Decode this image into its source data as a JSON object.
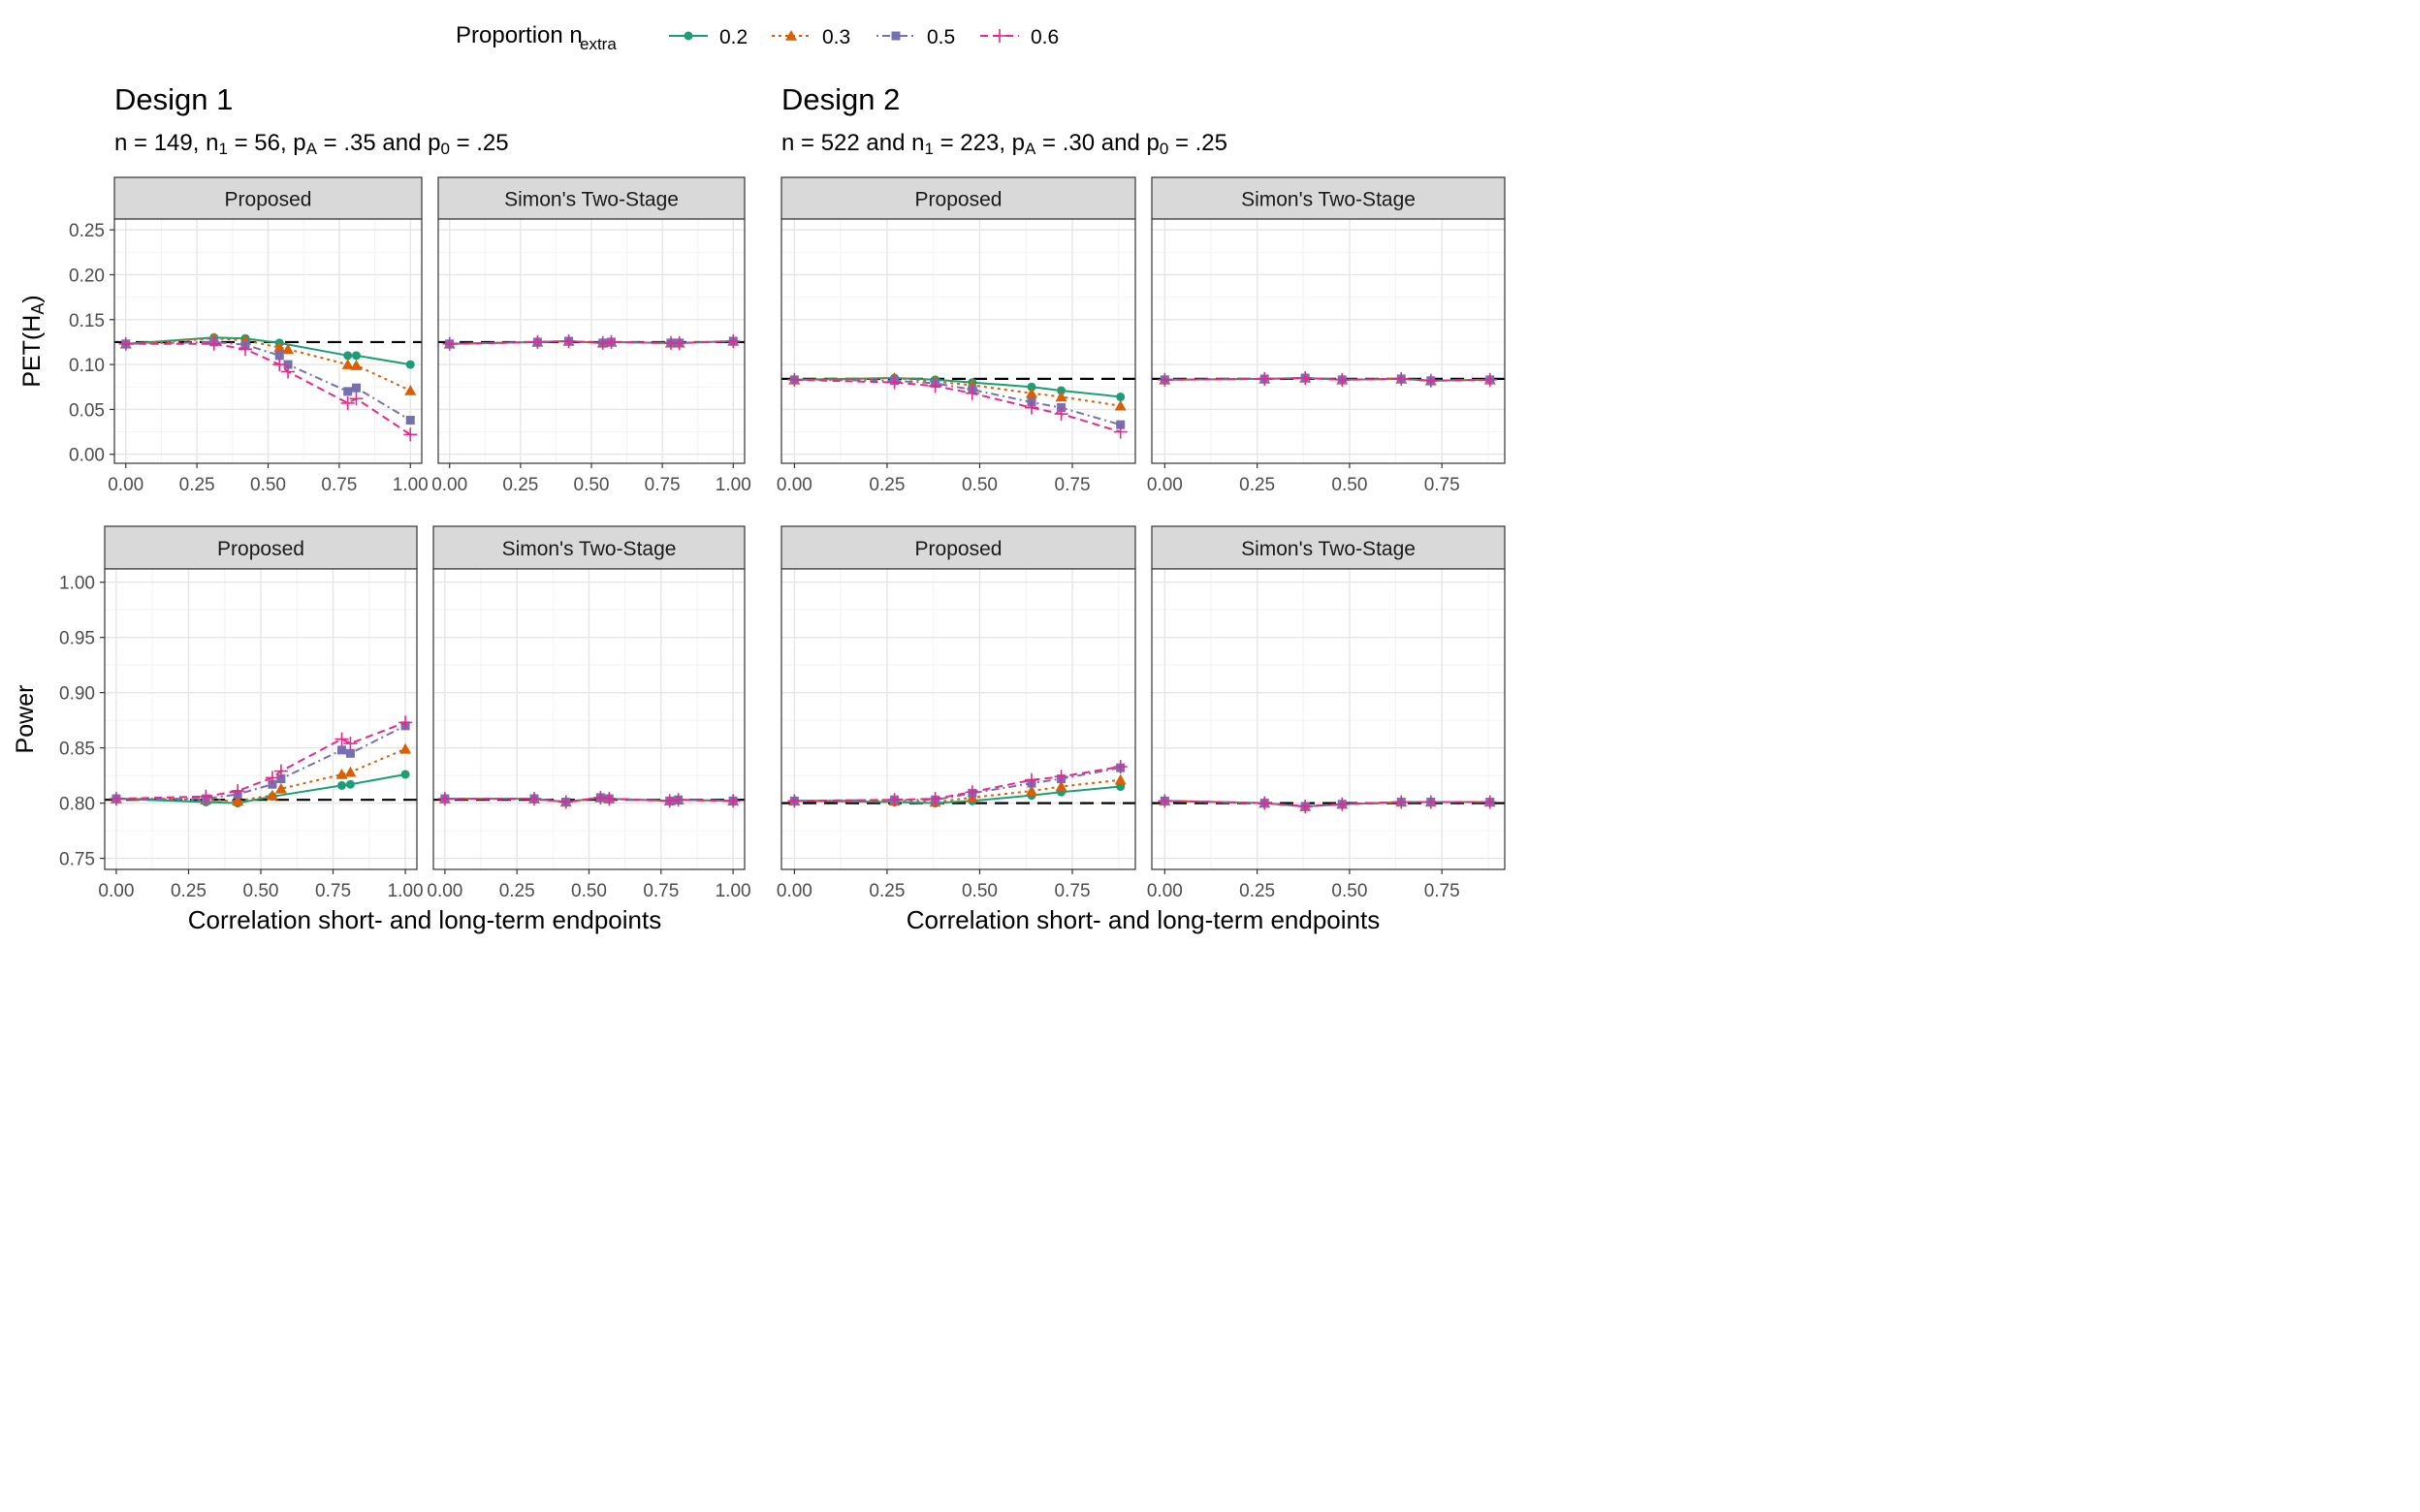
{
  "legend": {
    "title_main": "Proportion n",
    "title_sub": "extra",
    "placement": "top",
    "entries": [
      {
        "label": "0.2",
        "color": "#1b9e77",
        "shape": "circle",
        "dash": "solid"
      },
      {
        "label": "0.3",
        "color": "#d95f02",
        "shape": "triangle",
        "dash": "dotted"
      },
      {
        "label": "0.5",
        "color": "#7570b3",
        "shape": "square",
        "dash": "dotdash"
      },
      {
        "label": "0.6",
        "color": "#e7298a",
        "shape": "plus",
        "dash": "dashed"
      }
    ]
  },
  "designs": [
    {
      "title": "Design 1",
      "subtitle_parts": [
        [
          "n = 149, n",
          ""
        ],
        [
          "1",
          "sub"
        ],
        [
          " = 56, p",
          ""
        ],
        [
          "A",
          "sub"
        ],
        [
          " = .35 and p",
          ""
        ],
        [
          "0",
          "sub"
        ],
        [
          " = .25",
          ""
        ]
      ]
    },
    {
      "title": "Design 2",
      "subtitle_parts": [
        [
          "n = 522 and n",
          ""
        ],
        [
          "1",
          "sub"
        ],
        [
          " = 223, p",
          ""
        ],
        [
          "A",
          "sub"
        ],
        [
          " = .30 and p",
          ""
        ],
        [
          "0",
          "sub"
        ],
        [
          " = .25",
          ""
        ]
      ]
    }
  ],
  "y_labels": {
    "row1_parts": [
      [
        "PET(H",
        ""
      ],
      [
        "A",
        "sub"
      ],
      [
        ")",
        ""
      ]
    ],
    "row2": "Power"
  },
  "x_label": "Correlation short- and long-term endpoints",
  "facet_labels": [
    "Proposed",
    "Simon's Two-Stage"
  ],
  "chart_data": [
    {
      "type": "line",
      "design": "Design 1",
      "panel": "Proposed",
      "row": "PET(HA)",
      "xlim": [
        -0.04,
        1.04
      ],
      "ylim": [
        -0.01,
        0.262
      ],
      "x_ticks": [
        "0.00",
        "0.25",
        "0.50",
        "0.75",
        "1.00"
      ],
      "y_ticks": [
        "0.00",
        "0.05",
        "0.10",
        "0.15",
        "0.20",
        "0.25"
      ],
      "reference_line": 0.125,
      "series": [
        {
          "name": "0.2",
          "x": [
            0,
            0.31,
            0.42,
            0.54,
            0.78,
            0.81,
            1.0
          ],
          "y": [
            0.123,
            0.13,
            0.129,
            0.124,
            0.11,
            0.11,
            0.1
          ]
        },
        {
          "name": "0.3",
          "x": [
            0,
            0.31,
            0.42,
            0.54,
            0.57,
            0.78,
            0.81,
            1.0
          ],
          "y": [
            0.123,
            0.129,
            0.127,
            0.119,
            0.117,
            0.1,
            0.099,
            0.071
          ]
        },
        {
          "name": "0.5",
          "x": [
            0,
            0.31,
            0.42,
            0.54,
            0.57,
            0.78,
            0.81,
            1.0
          ],
          "y": [
            0.123,
            0.125,
            0.122,
            0.11,
            0.1,
            0.07,
            0.074,
            0.038
          ]
        },
        {
          "name": "0.6",
          "x": [
            0,
            0.31,
            0.42,
            0.54,
            0.57,
            0.78,
            0.81,
            1.0
          ],
          "y": [
            0.123,
            0.123,
            0.117,
            0.1,
            0.092,
            0.057,
            0.062,
            0.022
          ]
        }
      ]
    },
    {
      "type": "line",
      "design": "Design 1",
      "panel": "Simon's Two-Stage",
      "row": "PET(HA)",
      "xlim": [
        -0.04,
        1.04
      ],
      "ylim": [
        -0.01,
        0.262
      ],
      "x_ticks": [
        "0.00",
        "0.25",
        "0.50",
        "0.75",
        "1.00"
      ],
      "y_ticks": [],
      "reference_line": 0.125,
      "series": [
        {
          "name": "0.2",
          "x": [
            0,
            0.31,
            0.42,
            0.54,
            0.57,
            0.78,
            0.81,
            1.0
          ],
          "y": [
            0.123,
            0.125,
            0.126,
            0.124,
            0.125,
            0.124,
            0.124,
            0.126
          ]
        },
        {
          "name": "0.3",
          "x": [
            0,
            0.31,
            0.42,
            0.54,
            0.57,
            0.78,
            0.81,
            1.0
          ],
          "y": [
            0.123,
            0.125,
            0.126,
            0.124,
            0.125,
            0.124,
            0.124,
            0.126
          ]
        },
        {
          "name": "0.5",
          "x": [
            0,
            0.31,
            0.42,
            0.54,
            0.57,
            0.78,
            0.81,
            1.0
          ],
          "y": [
            0.123,
            0.125,
            0.126,
            0.124,
            0.125,
            0.124,
            0.124,
            0.126
          ]
        },
        {
          "name": "0.6",
          "x": [
            0,
            0.31,
            0.42,
            0.54,
            0.57,
            0.78,
            0.81,
            1.0
          ],
          "y": [
            0.123,
            0.125,
            0.126,
            0.124,
            0.125,
            0.124,
            0.124,
            0.126
          ]
        }
      ]
    },
    {
      "type": "line",
      "design": "Design 2",
      "panel": "Proposed",
      "row": "PET(HA)",
      "xlim": [
        -0.035,
        0.92
      ],
      "ylim": [
        -0.01,
        0.262
      ],
      "x_ticks": [
        "0.00",
        "0.25",
        "0.50",
        "0.75"
      ],
      "y_ticks": [],
      "reference_line": 0.084,
      "series": [
        {
          "name": "0.2",
          "x": [
            0,
            0.27,
            0.38,
            0.48,
            0.64,
            0.72,
            0.88
          ],
          "y": [
            0.083,
            0.085,
            0.083,
            0.08,
            0.075,
            0.071,
            0.064
          ]
        },
        {
          "name": "0.3",
          "x": [
            0,
            0.27,
            0.38,
            0.48,
            0.64,
            0.72,
            0.88
          ],
          "y": [
            0.083,
            0.085,
            0.081,
            0.077,
            0.068,
            0.064,
            0.054
          ]
        },
        {
          "name": "0.5",
          "x": [
            0,
            0.27,
            0.38,
            0.48,
            0.64,
            0.72,
            0.88
          ],
          "y": [
            0.083,
            0.082,
            0.079,
            0.072,
            0.058,
            0.052,
            0.033
          ]
        },
        {
          "name": "0.6",
          "x": [
            0,
            0.27,
            0.38,
            0.48,
            0.64,
            0.72,
            0.88
          ],
          "y": [
            0.083,
            0.08,
            0.076,
            0.068,
            0.052,
            0.045,
            0.025
          ]
        }
      ]
    },
    {
      "type": "line",
      "design": "Design 2",
      "panel": "Simon's Two-Stage",
      "row": "PET(HA)",
      "xlim": [
        -0.035,
        0.92
      ],
      "ylim": [
        -0.01,
        0.262
      ],
      "x_ticks": [
        "0.00",
        "0.25",
        "0.50",
        "0.75"
      ],
      "y_ticks": [],
      "reference_line": 0.084,
      "series": [
        {
          "name": "0.2",
          "x": [
            0,
            0.27,
            0.38,
            0.48,
            0.64,
            0.72,
            0.88
          ],
          "y": [
            0.083,
            0.084,
            0.085,
            0.083,
            0.084,
            0.082,
            0.083
          ]
        },
        {
          "name": "0.3",
          "x": [
            0,
            0.27,
            0.38,
            0.48,
            0.64,
            0.72,
            0.88
          ],
          "y": [
            0.083,
            0.084,
            0.085,
            0.083,
            0.084,
            0.082,
            0.083
          ]
        },
        {
          "name": "0.5",
          "x": [
            0,
            0.27,
            0.38,
            0.48,
            0.64,
            0.72,
            0.88
          ],
          "y": [
            0.083,
            0.084,
            0.085,
            0.083,
            0.084,
            0.082,
            0.083
          ]
        },
        {
          "name": "0.6",
          "x": [
            0,
            0.27,
            0.38,
            0.48,
            0.64,
            0.72,
            0.88
          ],
          "y": [
            0.083,
            0.084,
            0.085,
            0.083,
            0.084,
            0.082,
            0.083
          ]
        }
      ]
    },
    {
      "type": "line",
      "design": "Design 1",
      "panel": "Proposed",
      "row": "Power",
      "xlim": [
        -0.04,
        1.04
      ],
      "ylim": [
        0.74,
        1.012
      ],
      "x_ticks": [
        "0.00",
        "0.25",
        "0.50",
        "0.75",
        "1.00"
      ],
      "y_ticks": [
        "0.75",
        "0.80",
        "0.85",
        "0.90",
        "0.95",
        "1.00"
      ],
      "reference_line": 0.803,
      "series": [
        {
          "name": "0.2",
          "x": [
            0,
            0.31,
            0.42,
            0.54,
            0.78,
            0.81,
            1.0
          ],
          "y": [
            0.804,
            0.801,
            0.8,
            0.806,
            0.816,
            0.817,
            0.826
          ]
        },
        {
          "name": "0.3",
          "x": [
            0,
            0.31,
            0.42,
            0.54,
            0.57,
            0.78,
            0.81,
            1.0
          ],
          "y": [
            0.804,
            0.803,
            0.802,
            0.807,
            0.813,
            0.826,
            0.828,
            0.849
          ]
        },
        {
          "name": "0.5",
          "x": [
            0,
            0.31,
            0.42,
            0.54,
            0.57,
            0.78,
            0.81,
            1.0
          ],
          "y": [
            0.804,
            0.804,
            0.808,
            0.817,
            0.822,
            0.848,
            0.845,
            0.87
          ]
        },
        {
          "name": "0.6",
          "x": [
            0,
            0.31,
            0.42,
            0.54,
            0.57,
            0.78,
            0.81,
            1.0
          ],
          "y": [
            0.804,
            0.806,
            0.811,
            0.823,
            0.829,
            0.858,
            0.854,
            0.873
          ]
        }
      ]
    },
    {
      "type": "line",
      "design": "Design 1",
      "panel": "Simon's Two-Stage",
      "row": "Power",
      "xlim": [
        -0.04,
        1.04
      ],
      "ylim": [
        0.74,
        1.012
      ],
      "x_ticks": [
        "0.00",
        "0.25",
        "0.50",
        "0.75",
        "1.00"
      ],
      "y_ticks": [],
      "reference_line": 0.803,
      "series": [
        {
          "name": "0.2",
          "x": [
            0,
            0.31,
            0.42,
            0.54,
            0.57,
            0.78,
            0.81,
            1.0
          ],
          "y": [
            0.804,
            0.804,
            0.801,
            0.805,
            0.804,
            0.802,
            0.803,
            0.802
          ]
        },
        {
          "name": "0.3",
          "x": [
            0,
            0.31,
            0.42,
            0.54,
            0.57,
            0.78,
            0.81,
            1.0
          ],
          "y": [
            0.804,
            0.804,
            0.801,
            0.805,
            0.804,
            0.802,
            0.803,
            0.802
          ]
        },
        {
          "name": "0.5",
          "x": [
            0,
            0.31,
            0.42,
            0.54,
            0.57,
            0.78,
            0.81,
            1.0
          ],
          "y": [
            0.804,
            0.804,
            0.801,
            0.805,
            0.804,
            0.802,
            0.803,
            0.802
          ]
        },
        {
          "name": "0.6",
          "x": [
            0,
            0.31,
            0.42,
            0.54,
            0.57,
            0.78,
            0.81,
            1.0
          ],
          "y": [
            0.804,
            0.804,
            0.801,
            0.805,
            0.804,
            0.802,
            0.803,
            0.802
          ]
        }
      ]
    },
    {
      "type": "line",
      "design": "Design 2",
      "panel": "Proposed",
      "row": "Power",
      "xlim": [
        -0.035,
        0.92
      ],
      "ylim": [
        0.74,
        1.012
      ],
      "x_ticks": [
        "0.00",
        "0.25",
        "0.50",
        "0.75"
      ],
      "y_ticks": [],
      "reference_line": 0.8,
      "series": [
        {
          "name": "0.2",
          "x": [
            0,
            0.27,
            0.38,
            0.48,
            0.64,
            0.72,
            0.88
          ],
          "y": [
            0.802,
            0.801,
            0.8,
            0.802,
            0.807,
            0.81,
            0.815
          ]
        },
        {
          "name": "0.3",
          "x": [
            0,
            0.27,
            0.38,
            0.48,
            0.64,
            0.72,
            0.88
          ],
          "y": [
            0.802,
            0.802,
            0.801,
            0.805,
            0.811,
            0.815,
            0.821
          ]
        },
        {
          "name": "0.5",
          "x": [
            0,
            0.27,
            0.38,
            0.48,
            0.64,
            0.72,
            0.88
          ],
          "y": [
            0.802,
            0.803,
            0.803,
            0.809,
            0.818,
            0.822,
            0.832
          ]
        },
        {
          "name": "0.6",
          "x": [
            0,
            0.27,
            0.38,
            0.48,
            0.64,
            0.72,
            0.88
          ],
          "y": [
            0.802,
            0.803,
            0.804,
            0.81,
            0.821,
            0.824,
            0.833
          ]
        }
      ]
    },
    {
      "type": "line",
      "design": "Design 2",
      "panel": "Simon's Two-Stage",
      "row": "Power",
      "xlim": [
        -0.035,
        0.92
      ],
      "ylim": [
        0.74,
        1.012
      ],
      "x_ticks": [
        "0.00",
        "0.25",
        "0.50",
        "0.75"
      ],
      "y_ticks": [],
      "reference_line": 0.8,
      "series": [
        {
          "name": "0.2",
          "x": [
            0,
            0.27,
            0.38,
            0.48,
            0.64,
            0.72,
            0.88
          ],
          "y": [
            0.802,
            0.8,
            0.797,
            0.799,
            0.801,
            0.801,
            0.801
          ]
        },
        {
          "name": "0.3",
          "x": [
            0,
            0.27,
            0.38,
            0.48,
            0.64,
            0.72,
            0.88
          ],
          "y": [
            0.802,
            0.8,
            0.797,
            0.799,
            0.801,
            0.801,
            0.801
          ]
        },
        {
          "name": "0.5",
          "x": [
            0,
            0.27,
            0.38,
            0.48,
            0.64,
            0.72,
            0.88
          ],
          "y": [
            0.802,
            0.8,
            0.797,
            0.799,
            0.801,
            0.801,
            0.801
          ]
        },
        {
          "name": "0.6",
          "x": [
            0,
            0.27,
            0.38,
            0.48,
            0.64,
            0.72,
            0.88
          ],
          "y": [
            0.802,
            0.8,
            0.797,
            0.799,
            0.801,
            0.801,
            0.801
          ]
        }
      ]
    }
  ]
}
